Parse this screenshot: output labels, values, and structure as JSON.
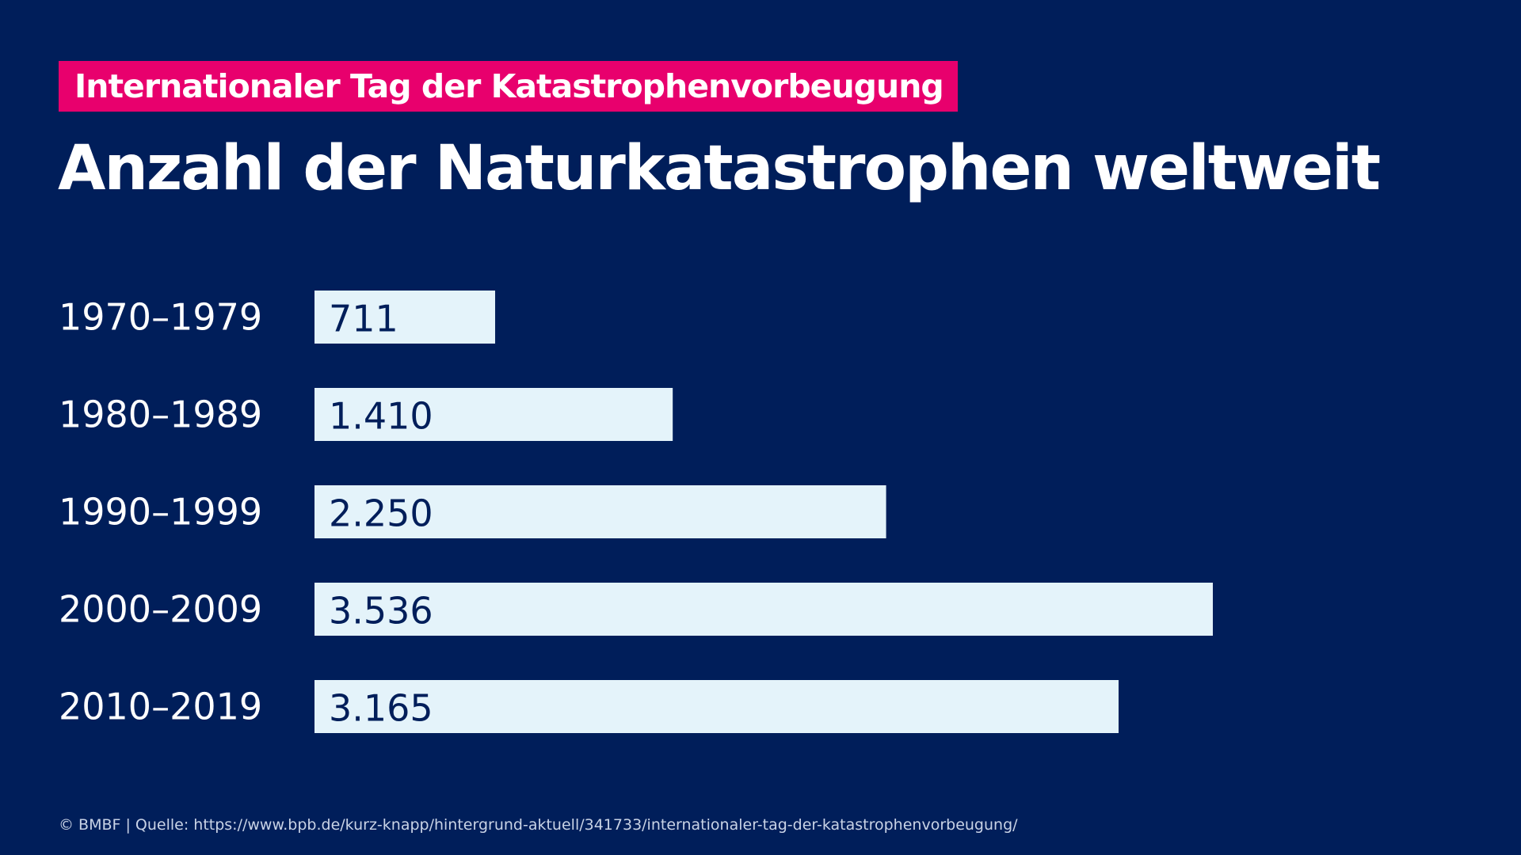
{
  "colors": {
    "background": "#001e5a",
    "tag_background": "#e8006d",
    "text": "#ffffff",
    "bar": "#e4f3fa",
    "bar_value_text": "#001e5a",
    "footer_text": "#c9d3e6"
  },
  "header": {
    "tag": "Internationaler Tag der Katastrophenvorbeugung",
    "title": "Anzahl der Naturkatastrophen weltweit"
  },
  "chart_data": {
    "type": "bar",
    "orientation": "horizontal",
    "title": "Anzahl der Naturkatastrophen weltweit",
    "categories": [
      "1970–1979",
      "1980–1989",
      "1990–1999",
      "2000–2009",
      "2010–2019"
    ],
    "values": [
      711,
      1410,
      2250,
      3536,
      3165
    ],
    "value_labels": [
      "711",
      "1.410",
      "2.250",
      "3.536",
      "3.165"
    ],
    "xlim": [
      0,
      4000
    ],
    "grid": false,
    "legend": "none",
    "xlabel": "",
    "ylabel": ""
  },
  "footer": {
    "source": "© BMBF | Quelle: https://www.bpb.de/kurz-knapp/hintergrund-aktuell/341733/internationaler-tag-der-katastrophenvorbeugung/"
  }
}
